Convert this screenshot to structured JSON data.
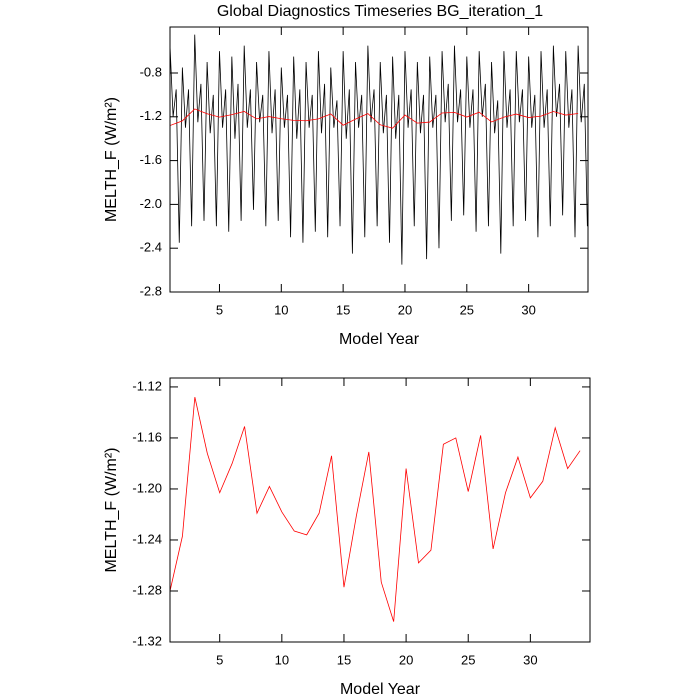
{
  "chart_data": [
    {
      "type": "line",
      "title": "Global Diagnostics Timeseries BG_iteration_1",
      "x_label": "Model Year",
      "y_label": "MELTH_F (W/m²)",
      "xlim": [
        1,
        34.8
      ],
      "xticks": [
        5,
        10,
        15,
        20,
        25,
        30
      ],
      "ylim": [
        -2.8,
        -0.38
      ],
      "yticks": [
        -0.8,
        -1.2,
        -1.6,
        {
          "value": -2,
          "label": "-2.0"
        },
        -2.4,
        -2.8
      ],
      "series": [
        {
          "color": "#000000",
          "x": [
            1,
            1.25,
            1.5,
            1.75,
            2,
            2.25,
            2.5,
            2.75,
            3,
            3.25,
            3.5,
            3.75,
            4,
            4.25,
            4.5,
            4.75,
            5,
            5.25,
            5.5,
            5.75,
            6,
            6.25,
            6.5,
            6.75,
            7,
            7.25,
            7.5,
            7.75,
            8,
            8.25,
            8.5,
            8.75,
            9,
            9.25,
            9.5,
            9.75,
            10,
            10.25,
            10.5,
            10.75,
            11,
            11.25,
            11.5,
            11.75,
            12,
            12.25,
            12.5,
            12.75,
            13,
            13.25,
            13.5,
            13.75,
            14,
            14.25,
            14.5,
            14.75,
            15,
            15.25,
            15.5,
            15.75,
            16,
            16.25,
            16.5,
            16.75,
            17,
            17.25,
            17.5,
            17.75,
            18,
            18.25,
            18.5,
            18.75,
            19,
            19.25,
            19.5,
            19.75,
            20,
            20.25,
            20.5,
            20.75,
            21,
            21.25,
            21.5,
            21.75,
            22,
            22.25,
            22.5,
            22.75,
            23,
            23.25,
            23.5,
            23.75,
            24,
            24.25,
            24.5,
            24.75,
            25,
            25.25,
            25.5,
            25.75,
            26,
            26.25,
            26.5,
            26.75,
            27,
            27.25,
            27.5,
            27.75,
            28,
            28.25,
            28.5,
            28.75,
            29,
            29.25,
            29.5,
            29.75,
            30,
            30.25,
            30.5,
            30.75,
            31,
            31.25,
            31.5,
            31.75,
            32,
            32.25,
            32.5,
            32.75,
            33,
            33.25,
            33.5,
            33.75,
            34,
            34.25,
            34.5,
            34.75
          ],
          "values": [
            -0.55,
            -1.2,
            -0.95,
            -2.35,
            -0.75,
            -1.3,
            -0.95,
            -2.2,
            -0.45,
            -1.25,
            -0.9,
            -2.15,
            -0.7,
            -1.35,
            -1.0,
            -2.2,
            -0.6,
            -1.3,
            -0.95,
            -2.25,
            -0.65,
            -1.4,
            -0.9,
            -2.15,
            -0.55,
            -1.3,
            -0.95,
            -2.05,
            -0.7,
            -1.25,
            -1.0,
            -2.2,
            -0.6,
            -1.35,
            -0.95,
            -2.15,
            -0.75,
            -1.3,
            -1.0,
            -2.3,
            -0.65,
            -1.4,
            -0.95,
            -2.35,
            -0.7,
            -1.3,
            -1.0,
            -2.25,
            -0.6,
            -1.35,
            -0.9,
            -2.3,
            -0.75,
            -1.3,
            -1.05,
            -2.2,
            -0.6,
            -1.4,
            -0.95,
            -2.45,
            -0.7,
            -1.3,
            -1.0,
            -2.3,
            -0.55,
            -1.25,
            -0.95,
            -2.2,
            -0.7,
            -1.35,
            -1.0,
            -2.35,
            -0.65,
            -1.4,
            -1.0,
            -2.55,
            -0.6,
            -1.3,
            -0.95,
            -2.2,
            -0.7,
            -1.35,
            -1.0,
            -2.5,
            -0.65,
            -1.3,
            -1.0,
            -2.4,
            -0.6,
            -1.25,
            -0.9,
            -2.15,
            -0.55,
            -1.25,
            -0.95,
            -2.1,
            -0.65,
            -1.3,
            -0.95,
            -2.25,
            -0.6,
            -1.2,
            -0.9,
            -2.2,
            -0.7,
            -1.35,
            -1.05,
            -2.45,
            -0.6,
            -1.3,
            -0.95,
            -2.2,
            -0.6,
            -1.25,
            -0.95,
            -2.15,
            -0.65,
            -1.3,
            -1.0,
            -2.3,
            -0.6,
            -1.3,
            -0.95,
            -2.2,
            -0.55,
            -1.2,
            -0.9,
            -2.1,
            -0.6,
            -1.3,
            -0.95,
            -2.3,
            -0.55,
            -1.25,
            -0.9,
            -2.2
          ]
        },
        {
          "color": "#ff0000",
          "x": [
            1,
            2,
            3,
            4,
            5,
            6,
            7,
            8,
            9,
            10,
            11,
            12,
            13,
            14,
            15,
            16,
            17,
            18,
            19,
            20,
            21,
            22,
            23,
            24,
            25,
            26,
            27,
            28,
            29,
            30,
            31,
            32,
            33,
            34
          ],
          "values": [
            -1.28,
            -1.237,
            -1.128,
            -1.172,
            -1.203,
            -1.18,
            -1.151,
            -1.219,
            -1.198,
            -1.218,
            -1.233,
            -1.236,
            -1.219,
            -1.174,
            -1.277,
            -1.221,
            -1.171,
            -1.273,
            -1.304,
            -1.184,
            -1.258,
            -1.248,
            -1.165,
            -1.16,
            -1.202,
            -1.158,
            -1.247,
            -1.203,
            -1.175,
            -1.207,
            -1.194,
            -1.152,
            -1.184,
            -1.17
          ]
        }
      ]
    },
    {
      "type": "line",
      "x_label": "Model Year",
      "y_label": "MELTH_F (W/m²)",
      "xlim": [
        1,
        34.8
      ],
      "xticks": [
        5,
        10,
        15,
        20,
        25,
        30
      ],
      "ylim": [
        -1.32,
        -1.113
      ],
      "yticks": [
        -1.12,
        -1.16,
        {
          "value": -1.2,
          "label": "-1.20"
        },
        -1.24,
        -1.28,
        -1.32
      ],
      "series": [
        {
          "color": "#ff0000",
          "x": [
            1,
            2,
            3,
            4,
            5,
            6,
            7,
            8,
            9,
            10,
            11,
            12,
            13,
            14,
            15,
            16,
            17,
            18,
            19,
            20,
            21,
            22,
            23,
            24,
            25,
            26,
            27,
            28,
            29,
            30,
            31,
            32,
            33,
            34
          ],
          "values": [
            -1.28,
            -1.237,
            -1.128,
            -1.172,
            -1.203,
            -1.18,
            -1.151,
            -1.219,
            -1.198,
            -1.218,
            -1.233,
            -1.236,
            -1.219,
            -1.174,
            -1.277,
            -1.221,
            -1.171,
            -1.273,
            -1.304,
            -1.184,
            -1.258,
            -1.248,
            -1.165,
            -1.16,
            -1.202,
            -1.158,
            -1.247,
            -1.203,
            -1.175,
            -1.207,
            -1.194,
            -1.152,
            -1.184,
            -1.17
          ]
        }
      ]
    }
  ]
}
